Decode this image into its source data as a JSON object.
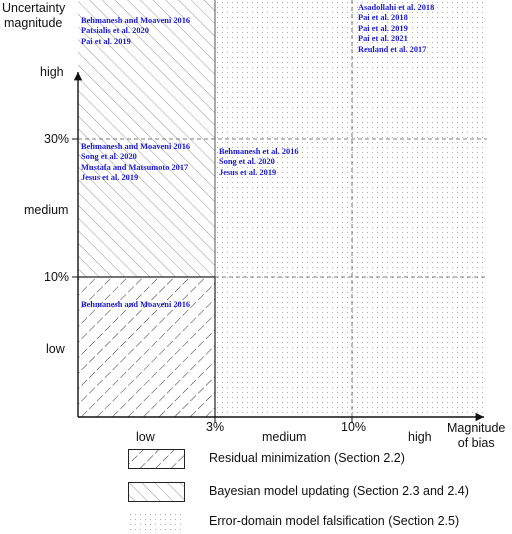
{
  "y_axis": {
    "title_line1": "Uncertainty",
    "title_line2": "magnitude"
  },
  "x_axis": {
    "title_line1": "Magnitude",
    "title_line2": "of bias"
  },
  "y_levels": {
    "high": "high",
    "medium": "medium",
    "low": "low"
  },
  "y_thresholds": {
    "upper": "30%",
    "lower": "10%"
  },
  "x_levels": {
    "low": "low",
    "medium": "medium",
    "high": "high"
  },
  "x_thresholds": {
    "first": "3%",
    "second": "10%"
  },
  "references": {
    "bayes_high": [
      "Behmanesh and Moaveni 2016",
      "Patsialis et al. 2020",
      "Pai et al. 2019"
    ],
    "efalsification_high": [
      "Asadollahi et al. 2018",
      "Pai et al. 2018",
      "Pai et al. 2019",
      "Pai et al. 2021",
      "Reuland et al. 2017"
    ],
    "bayes_medium": [
      "Behmanesh and Moaveni 2016",
      "Song et al. 2020",
      "Mustafa and Matsumoto 2017",
      "Jesus et al. 2019"
    ],
    "efalsification_medium": [
      "Behmanesh et al. 2016",
      "Song et al. 2020",
      "Jesus et al. 2019"
    ],
    "residual_low": [
      "Behmanesh and Moaveni 2016"
    ]
  },
  "legend": {
    "residual": "Residual minimization (Section 2.2)",
    "bayesian": "Bayesian model updating (Section 2.3 and 2.4)",
    "falsification": "Error-domain model falsification (Section 2.5)"
  },
  "colors": {
    "reference_text": "#1a1ad6",
    "hatch": "#333333",
    "dots": "#9a9a9a"
  }
}
